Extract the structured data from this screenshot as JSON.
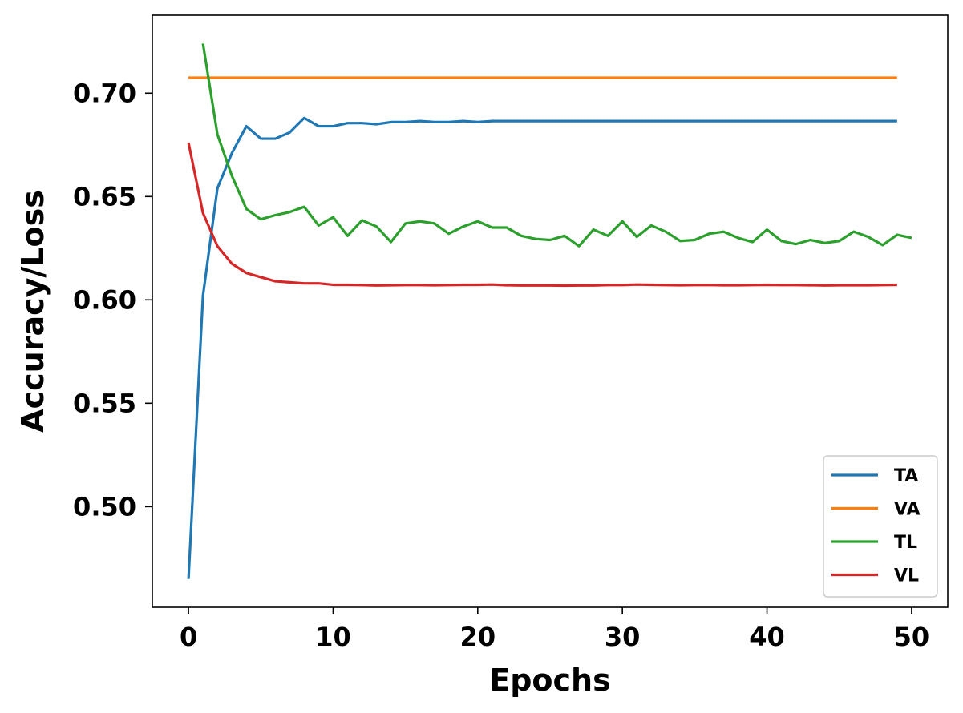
{
  "chart_data": {
    "type": "line",
    "title": "",
    "xlabel": "Epochs",
    "ylabel": "Accuracy/Loss",
    "xlim": [
      -2.5,
      52.5
    ],
    "ylim": [
      0.4513,
      0.7377
    ],
    "xticks": [
      0,
      10,
      20,
      30,
      40,
      50
    ],
    "yticks": [
      0.5,
      0.55,
      0.6,
      0.65,
      0.7
    ],
    "xtick_labels": [
      "0",
      "10",
      "20",
      "30",
      "40",
      "50"
    ],
    "ytick_labels": [
      "0.50",
      "0.55",
      "0.60",
      "0.65",
      "0.70"
    ],
    "grid": false,
    "legend_position": "lower-right",
    "series": [
      {
        "name": "TA",
        "color": "#1f77b4",
        "x": [
          0,
          1,
          2,
          3,
          4,
          5,
          6,
          7,
          8,
          9,
          10,
          11,
          12,
          13,
          14,
          15,
          16,
          17,
          18,
          19,
          20,
          21,
          22,
          23,
          24,
          25,
          26,
          27,
          28,
          29,
          30,
          31,
          32,
          33,
          34,
          35,
          36,
          37,
          38,
          39,
          40,
          41,
          42,
          43,
          44,
          45,
          46,
          47,
          48,
          49
        ],
        "y": [
          0.465,
          0.602,
          0.654,
          0.671,
          0.684,
          0.678,
          0.678,
          0.681,
          0.688,
          0.684,
          0.684,
          0.6855,
          0.6855,
          0.685,
          0.686,
          0.686,
          0.6865,
          0.686,
          0.686,
          0.6865,
          0.686,
          0.6865,
          0.6865,
          0.6865,
          0.6865,
          0.6865,
          0.6865,
          0.6865,
          0.6865,
          0.6865,
          0.6865,
          0.6865,
          0.6865,
          0.6865,
          0.6865,
          0.6865,
          0.6865,
          0.6865,
          0.6865,
          0.6865,
          0.6865,
          0.6865,
          0.6865,
          0.6865,
          0.6865,
          0.6865,
          0.6865,
          0.6865,
          0.6865,
          0.6865
        ]
      },
      {
        "name": "VA",
        "color": "#ff7f0e",
        "x": [
          0,
          49
        ],
        "y": [
          0.7075,
          0.7075
        ]
      },
      {
        "name": "TL",
        "color": "#2ca02c",
        "x": [
          1,
          2,
          3,
          4,
          5,
          6,
          7,
          8,
          9,
          10,
          11,
          12,
          13,
          14,
          15,
          16,
          17,
          18,
          19,
          20,
          21,
          22,
          23,
          24,
          25,
          26,
          27,
          28,
          29,
          30,
          31,
          32,
          33,
          34,
          35,
          36,
          37,
          38,
          39,
          40,
          41,
          42,
          43,
          44,
          45,
          46,
          47,
          48,
          49,
          50
        ],
        "y": [
          0.724,
          0.68,
          0.66,
          0.644,
          0.639,
          0.641,
          0.6425,
          0.645,
          0.636,
          0.64,
          0.631,
          0.6385,
          0.6355,
          0.628,
          0.637,
          0.638,
          0.637,
          0.632,
          0.6355,
          0.638,
          0.635,
          0.635,
          0.631,
          0.6295,
          0.629,
          0.631,
          0.626,
          0.634,
          0.631,
          0.638,
          0.6305,
          0.636,
          0.633,
          0.6285,
          0.629,
          0.632,
          0.633,
          0.63,
          0.628,
          0.634,
          0.6285,
          0.627,
          0.629,
          0.6275,
          0.6285,
          0.633,
          0.6305,
          0.6265,
          0.6315,
          0.63
        ]
      },
      {
        "name": "VL",
        "color": "#d62728",
        "x": [
          0,
          1,
          2,
          3,
          4,
          5,
          6,
          7,
          8,
          9,
          10,
          11,
          12,
          13,
          14,
          15,
          16,
          17,
          18,
          19,
          20,
          21,
          22,
          23,
          24,
          25,
          26,
          27,
          28,
          29,
          30,
          31,
          32,
          33,
          34,
          35,
          36,
          37,
          38,
          39,
          40,
          41,
          42,
          43,
          44,
          45,
          46,
          47,
          48,
          49
        ],
        "y": [
          0.676,
          0.642,
          0.626,
          0.6175,
          0.613,
          0.611,
          0.609,
          0.6085,
          0.608,
          0.608,
          0.6073,
          0.6073,
          0.6072,
          0.607,
          0.6071,
          0.6072,
          0.6072,
          0.6071,
          0.6072,
          0.6073,
          0.6073,
          0.6074,
          0.6071,
          0.607,
          0.607,
          0.607,
          0.6069,
          0.607,
          0.607,
          0.6072,
          0.6072,
          0.6074,
          0.6073,
          0.6072,
          0.6071,
          0.6072,
          0.6072,
          0.6071,
          0.6071,
          0.6072,
          0.6073,
          0.6072,
          0.6072,
          0.6071,
          0.607,
          0.6071,
          0.6071,
          0.6071,
          0.6072,
          0.6073
        ]
      }
    ]
  }
}
